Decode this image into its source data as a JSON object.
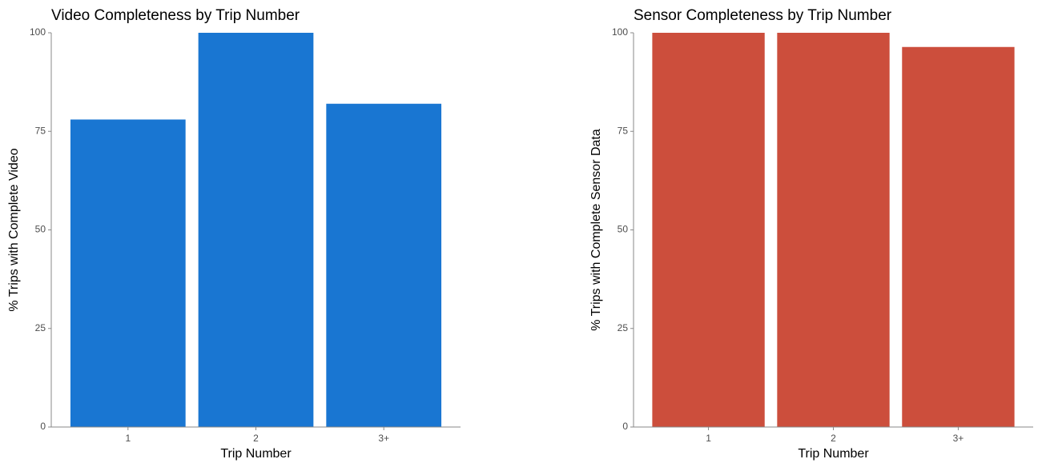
{
  "chart_data": [
    {
      "type": "bar",
      "title": "Video Completeness by Trip Number",
      "x_label": "Trip Number",
      "y_label": "% Trips with Complete Video",
      "categories": [
        "1",
        "2",
        "3+"
      ],
      "values": [
        78,
        100,
        82
      ],
      "color": "#1976d2",
      "ylim": [
        0,
        100
      ],
      "yticks": [
        0,
        25,
        50,
        75,
        100
      ]
    },
    {
      "type": "bar",
      "title": "Sensor Completeness by Trip Number",
      "x_label": "Trip Number",
      "y_label": "% Trips with Complete Sensor Data",
      "categories": [
        "1",
        "2",
        "3+"
      ],
      "values": [
        100,
        100,
        96.4
      ],
      "color": "#cc4e3c",
      "ylim": [
        0,
        100
      ],
      "yticks": [
        0,
        25,
        50,
        75,
        100
      ]
    }
  ]
}
